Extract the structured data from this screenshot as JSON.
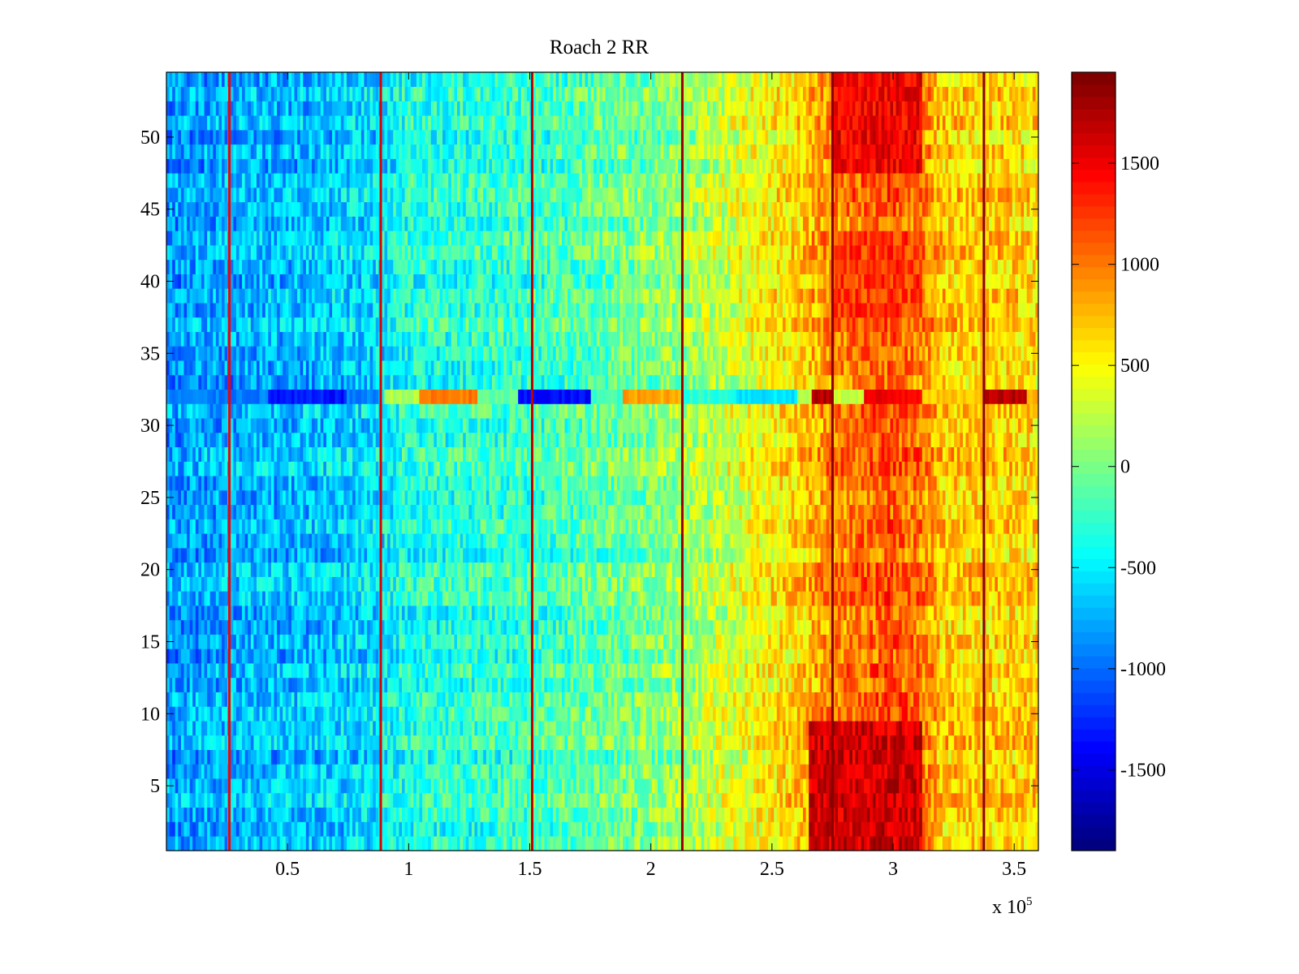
{
  "chart_data": {
    "type": "heatmap",
    "title": "Roach 2 RR",
    "xlabel": "",
    "ylabel": "",
    "x_multiplier": "x 10",
    "x_multiplier_exp": "5",
    "xlim": [
      0,
      3.6
    ],
    "ylim": [
      0.5,
      54.5
    ],
    "n_rows": 54,
    "x_ticks": [
      {
        "value": 0.5,
        "label": "0.5"
      },
      {
        "value": 1,
        "label": "1"
      },
      {
        "value": 1.5,
        "label": "1.5"
      },
      {
        "value": 2,
        "label": "2"
      },
      {
        "value": 2.5,
        "label": "2.5"
      },
      {
        "value": 3,
        "label": "3"
      },
      {
        "value": 3.5,
        "label": "3.5"
      }
    ],
    "y_ticks": [
      {
        "value": 5,
        "label": "5"
      },
      {
        "value": 10,
        "label": "10"
      },
      {
        "value": 15,
        "label": "15"
      },
      {
        "value": 20,
        "label": "20"
      },
      {
        "value": 25,
        "label": "25"
      },
      {
        "value": 30,
        "label": "30"
      },
      {
        "value": 35,
        "label": "35"
      },
      {
        "value": 40,
        "label": "40"
      },
      {
        "value": 45,
        "label": "45"
      },
      {
        "value": 50,
        "label": "50"
      }
    ],
    "colorbar": {
      "colormap": "jet",
      "range": [
        -1900,
        1950
      ],
      "ticks": [
        {
          "value": -1500,
          "label": "-1500"
        },
        {
          "value": -1000,
          "label": "-1000"
        },
        {
          "value": -500,
          "label": "-500"
        },
        {
          "value": 0,
          "label": "0"
        },
        {
          "value": 500,
          "label": "500"
        },
        {
          "value": 1000,
          "label": "1000"
        },
        {
          "value": 1500,
          "label": "1500"
        }
      ]
    },
    "column_profile": [
      {
        "x": 0.0,
        "value": -850
      },
      {
        "x": 0.3,
        "value": -750
      },
      {
        "x": 0.6,
        "value": -700
      },
      {
        "x": 0.88,
        "value": -550
      },
      {
        "x": 1.0,
        "value": -350
      },
      {
        "x": 1.5,
        "value": -250
      },
      {
        "x": 2.0,
        "value": 0
      },
      {
        "x": 2.3,
        "value": 300
      },
      {
        "x": 2.6,
        "value": 650
      },
      {
        "x": 2.75,
        "value": 950
      },
      {
        "x": 3.0,
        "value": 1150
      },
      {
        "x": 3.12,
        "value": 1000
      },
      {
        "x": 3.2,
        "value": 700
      },
      {
        "x": 3.6,
        "value": 650
      }
    ],
    "vertical_lines": [
      {
        "x": 0.26,
        "value": 1500
      },
      {
        "x": 0.885,
        "value": 1600
      },
      {
        "x": 1.51,
        "value": 1700
      },
      {
        "x": 2.13,
        "value": 1850
      },
      {
        "x": 2.75,
        "value": 1900
      },
      {
        "x": 3.375,
        "value": 1900
      }
    ],
    "hot_regions": [
      {
        "x_range": [
          2.65,
          3.12
        ],
        "y_range": [
          0.5,
          9.5
        ],
        "value": 1650
      },
      {
        "x_range": [
          2.75,
          3.12
        ],
        "y_range": [
          47.5,
          54.5
        ],
        "value": 1500
      },
      {
        "x_range": [
          2.75,
          3.12
        ],
        "y_range": [
          37.5,
          43.5
        ],
        "value": 1250
      }
    ],
    "row_32_segments": [
      {
        "x_range": [
          0.0,
          0.42
        ],
        "value": -950
      },
      {
        "x_range": [
          0.42,
          0.75
        ],
        "value": -1350
      },
      {
        "x_range": [
          0.75,
          0.88
        ],
        "value": -950
      },
      {
        "x_range": [
          0.9,
          1.05
        ],
        "value": 200
      },
      {
        "x_range": [
          1.05,
          1.28
        ],
        "value": 1000
      },
      {
        "x_range": [
          1.28,
          1.45
        ],
        "value": -100
      },
      {
        "x_range": [
          1.45,
          1.75
        ],
        "value": -1400
      },
      {
        "x_range": [
          1.75,
          1.88
        ],
        "value": -200
      },
      {
        "x_range": [
          1.88,
          2.13
        ],
        "value": 850
      },
      {
        "x_range": [
          2.13,
          2.35
        ],
        "value": -300
      },
      {
        "x_range": [
          2.35,
          2.6
        ],
        "value": -550
      },
      {
        "x_range": [
          2.6,
          2.67
        ],
        "value": 200
      },
      {
        "x_range": [
          2.67,
          2.75
        ],
        "value": 1750
      },
      {
        "x_range": [
          2.75,
          2.88
        ],
        "value": 300
      },
      {
        "x_range": [
          2.88,
          3.12
        ],
        "value": 1500
      },
      {
        "x_range": [
          3.12,
          3.37
        ],
        "value": 700
      },
      {
        "x_range": [
          3.37,
          3.55
        ],
        "value": 1750
      },
      {
        "x_range": [
          3.55,
          3.6
        ],
        "value": 800
      }
    ]
  }
}
